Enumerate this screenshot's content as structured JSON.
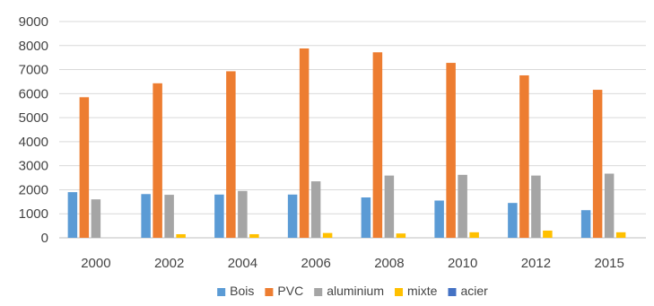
{
  "chart_data": {
    "type": "bar",
    "categories": [
      "2000",
      "2002",
      "2004",
      "2006",
      "2008",
      "2010",
      "2012",
      "2015"
    ],
    "series": [
      {
        "name": "Bois",
        "color": "#5b9bd5",
        "values": [
          1900,
          1820,
          1800,
          1800,
          1680,
          1550,
          1450,
          1150
        ]
      },
      {
        "name": "PVC",
        "color": "#ed7d31",
        "values": [
          5850,
          6430,
          6930,
          7880,
          7720,
          7280,
          6760,
          6160
        ]
      },
      {
        "name": "aluminium",
        "color": "#a5a5a5",
        "values": [
          1600,
          1790,
          1950,
          2350,
          2590,
          2620,
          2590,
          2670
        ]
      },
      {
        "name": "mixte",
        "color": "#ffc000",
        "values": [
          0,
          150,
          150,
          200,
          180,
          230,
          300,
          230
        ]
      },
      {
        "name": "acier",
        "color": "#4472c4",
        "values": [
          0,
          0,
          0,
          0,
          0,
          0,
          0,
          0
        ]
      }
    ],
    "yticks": [
      "0",
      "1000",
      "2000",
      "3000",
      "4000",
      "5000",
      "6000",
      "7000",
      "8000",
      "9000"
    ],
    "ylim": [
      0,
      9000
    ],
    "grid": true,
    "legend_position": "bottom",
    "title": "",
    "xlabel": "",
    "ylabel": ""
  }
}
